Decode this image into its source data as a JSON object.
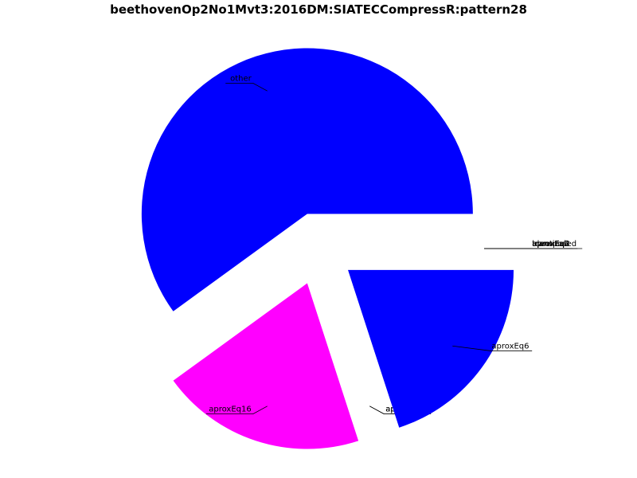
{
  "chart_data": {
    "type": "pie",
    "title": "beethovenOp2No1Mvt3:2016DM:SIATECCompressR:pattern28",
    "legend": "none",
    "slices": [
      {
        "label": "other",
        "value": 60.0,
        "color": "#0000ff",
        "exploded": true
      },
      {
        "label": "aproxEq16",
        "value": 20.0,
        "color": "#ff00ff",
        "exploded": true
      },
      {
        "label": "aproxEq12",
        "value": 0.0,
        "color": "#0000ff",
        "exploded": true
      },
      {
        "label": "aproxEq8",
        "value": 0.0,
        "color": "#0000ff",
        "exploded": true
      },
      {
        "label": "aproxEq6",
        "value": 20.0,
        "color": "#0000ff",
        "exploded": true
      },
      {
        "label": "aproxEq4",
        "value": 0.0,
        "color": "#0000ff",
        "exploded": true
      },
      {
        "label": "identical",
        "value": 0.0,
        "color": "#0000ff",
        "exploded": true
      },
      {
        "label": "aproxEq2",
        "value": 0.0,
        "color": "#0000ff",
        "exploded": true
      },
      {
        "label": "aproxEq3",
        "value": 0.0,
        "color": "#0000ff",
        "exploded": true
      },
      {
        "label": "transposed",
        "value": 0.0,
        "color": "#0000ff",
        "exploded": true
      }
    ]
  }
}
